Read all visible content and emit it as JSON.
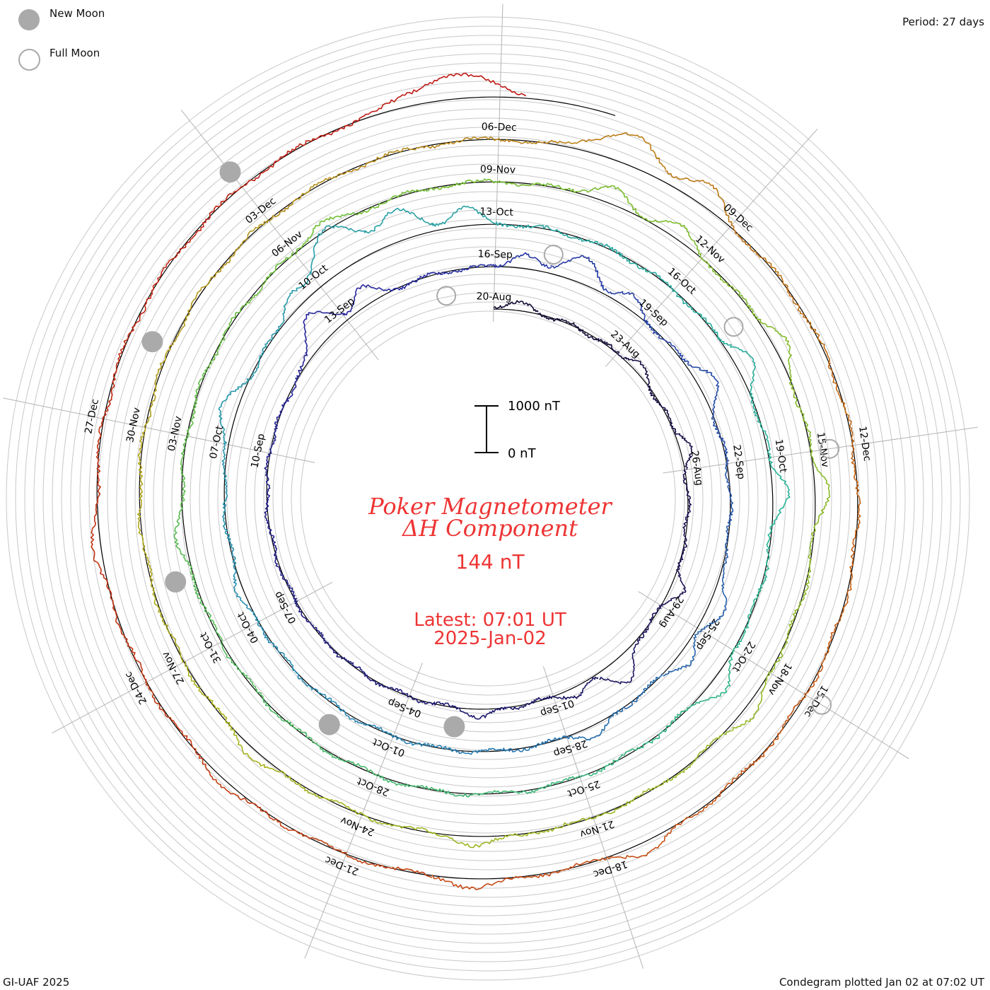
{
  "chart_data": {
    "type": "line",
    "subtype": "polar-spiral-condegram",
    "title_line1": "Poker Magnetometer",
    "title_line2": "ΔH Component",
    "current_value": "144 nT",
    "latest_time": "Latest: 07:01 UT",
    "latest_date": "2025-Jan-02",
    "period_label": "Period: 27 days",
    "period_days": 27,
    "scale_bar": {
      "top_label": "1000 nT",
      "bottom_label": "0 nT",
      "top_value": 1000,
      "bottom_value": 0
    },
    "legend": [
      {
        "symbol": "new",
        "label": "New Moon"
      },
      {
        "symbol": "full",
        "label": "Full Moon"
      }
    ],
    "footer_left": "GI-UAF 2025",
    "footer_right": "Condegram plotted Jan 02 at 07:02 UT",
    "start_date": "2024-08-20",
    "end_date": "2025-01-02",
    "tick_labels": [
      "20-Aug",
      "23-Aug",
      "26-Aug",
      "29-Aug",
      "01-Sep",
      "04-Sep",
      "07-Sep",
      "10-Sep",
      "13-Sep",
      "16-Sep",
      "19-Sep",
      "22-Sep",
      "25-Sep",
      "28-Sep",
      "01-Oct",
      "04-Oct",
      "07-Oct",
      "10-Oct",
      "13-Oct",
      "16-Oct",
      "19-Oct",
      "22-Oct",
      "25-Oct",
      "28-Oct",
      "31-Oct",
      "03-Nov",
      "06-Nov",
      "09-Nov",
      "12-Nov",
      "15-Nov",
      "18-Nov",
      "21-Nov",
      "24-Nov",
      "27-Nov",
      "30-Nov",
      "03-Dec",
      "06-Dec",
      "09-Dec",
      "12-Dec",
      "15-Dec",
      "18-Dec",
      "21-Dec",
      "24-Dec",
      "27-Dec"
    ],
    "new_moons": [
      "2024-09-03",
      "2024-10-02",
      "2024-11-01",
      "2024-12-01",
      "2024-12-30"
    ],
    "full_moons": [
      "2024-08-19",
      "2024-09-17",
      "2024-10-17",
      "2024-11-15",
      "2024-12-15"
    ],
    "disturbances_nT": [
      {
        "date": "2024-08-20",
        "peak": -180,
        "width": 0.4
      },
      {
        "date": "2024-08-23",
        "peak": -200,
        "width": 0.3
      },
      {
        "date": "2024-08-25",
        "peak": -250,
        "width": 0.3
      },
      {
        "date": "2024-08-28",
        "peak": -300,
        "width": 0.25
      },
      {
        "date": "2024-08-30",
        "peak": -550,
        "width": 0.35
      },
      {
        "date": "2024-08-31",
        "peak": -200,
        "width": 0.3
      },
      {
        "date": "2024-09-02",
        "peak": -180,
        "width": 0.3
      },
      {
        "date": "2024-09-12",
        "peak": -650,
        "width": 0.4
      },
      {
        "date": "2024-09-13",
        "peak": -400,
        "width": 0.3
      },
      {
        "date": "2024-09-16",
        "peak": -300,
        "width": 0.3
      },
      {
        "date": "2024-09-17",
        "peak": -550,
        "width": 0.4
      },
      {
        "date": "2024-09-18",
        "peak": -300,
        "width": 0.3
      },
      {
        "date": "2024-09-20",
        "peak": -400,
        "width": 0.35
      },
      {
        "date": "2024-09-24",
        "peak": -350,
        "width": 0.4
      },
      {
        "date": "2024-09-25",
        "peak": -300,
        "width": 0.3
      },
      {
        "date": "2024-09-27",
        "peak": -250,
        "width": 0.3
      },
      {
        "date": "2024-10-04",
        "peak": -150,
        "width": 0.3
      },
      {
        "date": "2024-10-07",
        "peak": -350,
        "width": 0.4
      },
      {
        "date": "2024-10-09",
        "peak": -300,
        "width": 0.3
      },
      {
        "date": "2024-10-10",
        "peak": -950,
        "width": 0.5
      },
      {
        "date": "2024-10-11",
        "peak": -650,
        "width": 0.4
      },
      {
        "date": "2024-10-12",
        "peak": -400,
        "width": 0.3
      },
      {
        "date": "2024-10-17",
        "peak": -400,
        "width": 0.3
      },
      {
        "date": "2024-10-19",
        "peak": -350,
        "width": 0.3
      },
      {
        "date": "2024-10-22",
        "peak": -350,
        "width": 0.3
      },
      {
        "date": "2024-11-01",
        "peak": -200,
        "width": 0.3
      },
      {
        "date": "2024-11-06",
        "peak": -200,
        "width": 0.3
      },
      {
        "date": "2024-11-10",
        "peak": -350,
        "width": 0.3
      },
      {
        "date": "2024-11-11",
        "peak": -300,
        "width": 0.3
      },
      {
        "date": "2024-11-13",
        "peak": -300,
        "width": 0.3
      },
      {
        "date": "2024-11-15",
        "peak": -300,
        "width": 0.3
      },
      {
        "date": "2024-11-18",
        "peak": -250,
        "width": 0.3
      },
      {
        "date": "2024-11-22",
        "peak": -200,
        "width": 0.3
      },
      {
        "date": "2024-11-25",
        "peak": -200,
        "width": 0.3
      },
      {
        "date": "2024-12-07",
        "peak": -650,
        "width": 0.45
      },
      {
        "date": "2024-12-08",
        "peak": -450,
        "width": 0.35
      },
      {
        "date": "2024-12-17",
        "peak": -250,
        "width": 0.3
      },
      {
        "date": "2024-12-19",
        "peak": -200,
        "width": 0.3
      },
      {
        "date": "2024-12-22",
        "peak": -150,
        "width": 0.3
      },
      {
        "date": "2024-12-25",
        "peak": -180,
        "width": 0.3
      },
      {
        "date": "2025-01-01",
        "peak": -500,
        "width": 0.6
      }
    ],
    "grid": true,
    "legend_position": "top-left"
  }
}
